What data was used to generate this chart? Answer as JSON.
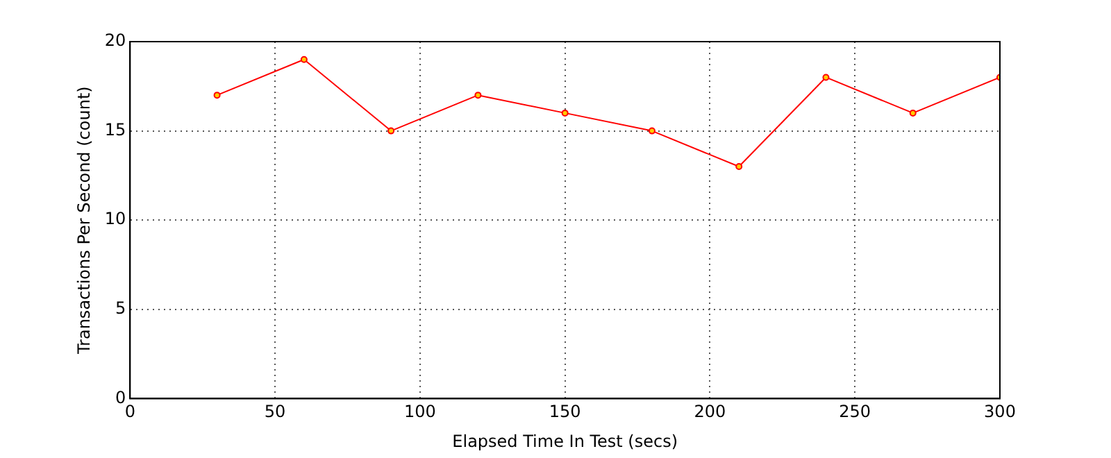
{
  "chart_data": {
    "type": "line",
    "xlabel": "Elapsed Time In Test (secs)",
    "ylabel": "Transactions Per Second (count)",
    "x": [
      30,
      60,
      90,
      120,
      150,
      180,
      210,
      240,
      270,
      300
    ],
    "series": [
      {
        "color": "#ff0000",
        "values": [
          17,
          19,
          15,
          17,
          16,
          15,
          13,
          18,
          16,
          18
        ]
      }
    ],
    "xlim": [
      0,
      300
    ],
    "xticks": [
      0,
      50,
      100,
      150,
      200,
      250,
      300
    ],
    "ylim": [
      0,
      20
    ],
    "yticks": [
      0,
      5,
      10,
      15,
      20
    ],
    "grid": true,
    "legend": false,
    "marker": "circle",
    "line_style": "solid"
  }
}
